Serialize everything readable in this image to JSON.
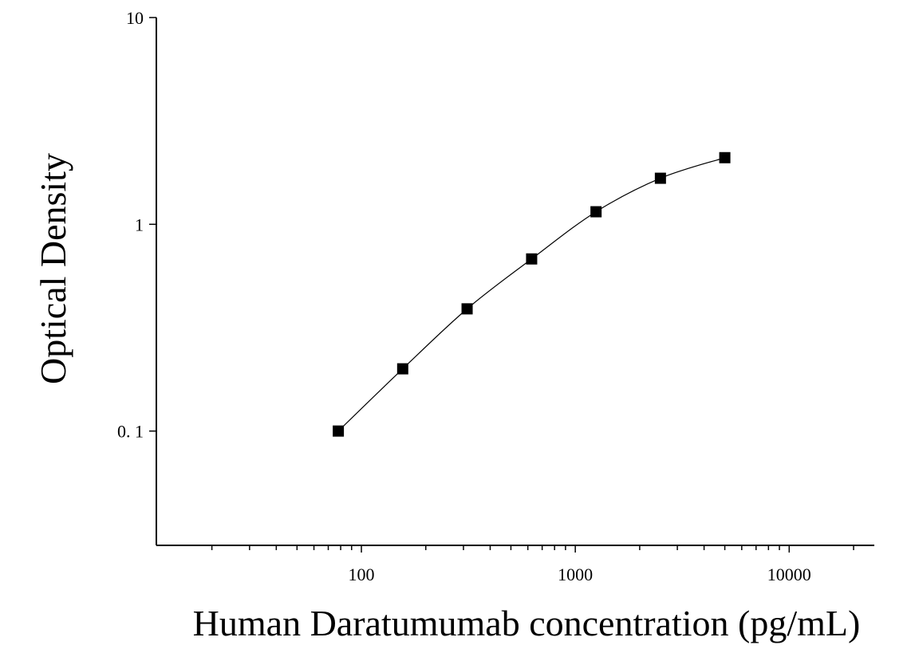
{
  "chart_data": {
    "type": "scatter",
    "xlabel": "Human Daratumumab concentration (pg/mL)",
    "ylabel": "Optical Density",
    "x_scale": "log",
    "y_scale": "log",
    "xlim": [
      11,
      25000
    ],
    "ylim": [
      0.028,
      10
    ],
    "x_ticks": [
      {
        "value": 100,
        "label": "100"
      },
      {
        "value": 1000,
        "label": "1000"
      },
      {
        "value": 10000,
        "label": "10000"
      }
    ],
    "y_ticks": [
      {
        "value": 10,
        "label": "10"
      },
      {
        "value": 1,
        "label": "1"
      },
      {
        "value": 0.1,
        "label": "0. 1"
      }
    ],
    "grid": false,
    "series": [
      {
        "marker": "square",
        "fit": "smooth-curve",
        "color": "#000000",
        "x": [
          78,
          156,
          312,
          625,
          1250,
          2500,
          5000
        ],
        "y": [
          0.1,
          0.2,
          0.39,
          0.68,
          1.15,
          1.67,
          2.1
        ]
      }
    ]
  }
}
